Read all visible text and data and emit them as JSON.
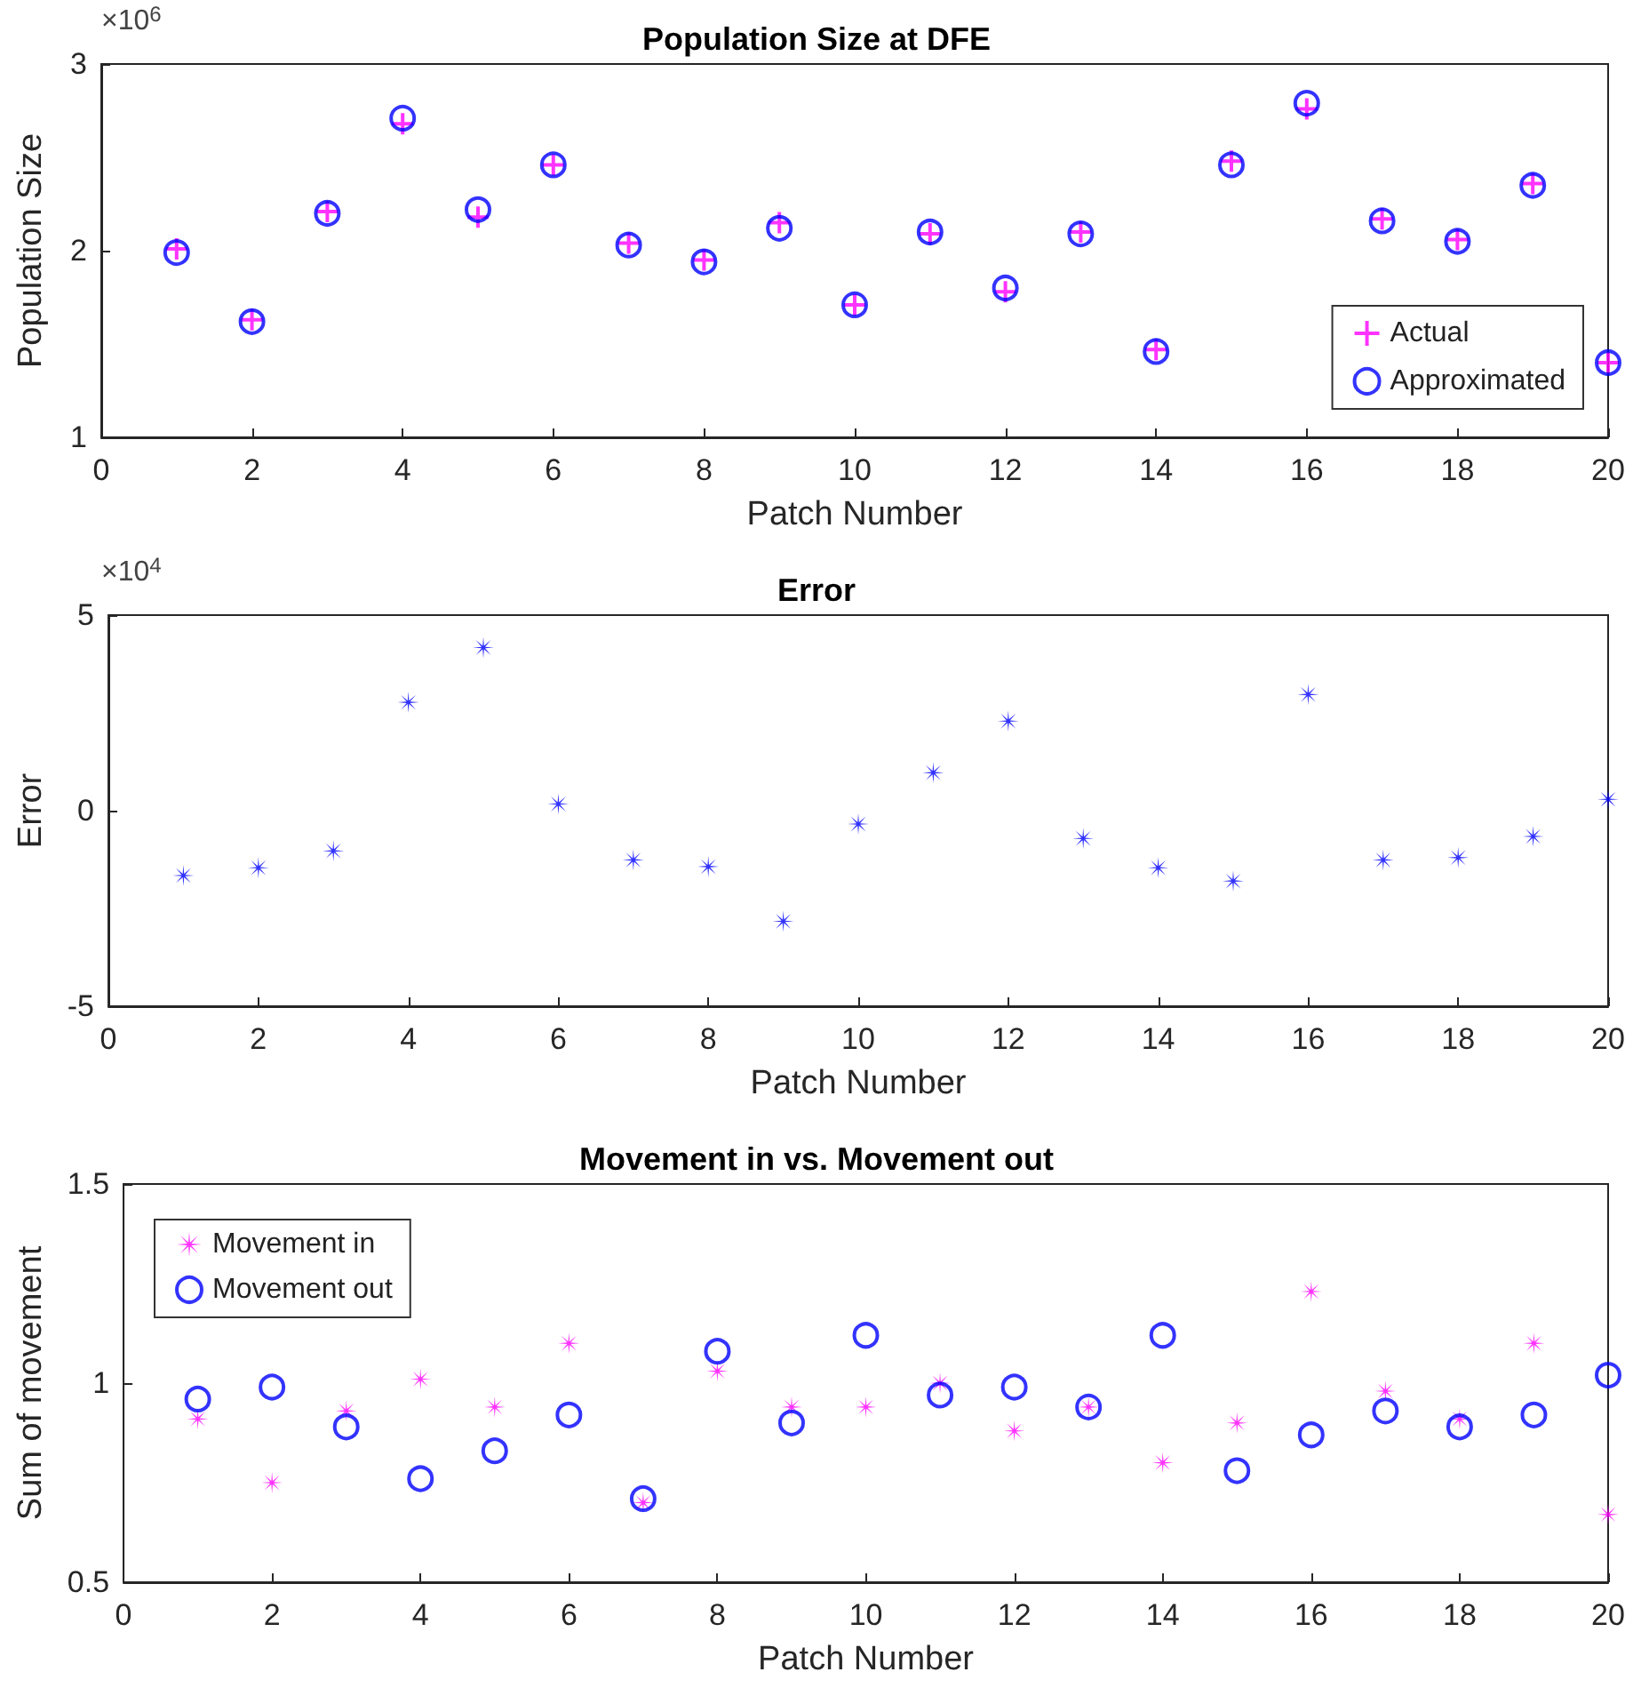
{
  "chart_data": [
    {
      "type": "scatter",
      "title": "Population Size at DFE",
      "xlabel": "Patch Number",
      "ylabel": "Population Size",
      "annotations": [
        "×10$^{6}$"
      ],
      "x": [
        1,
        2,
        3,
        4,
        5,
        6,
        7,
        8,
        9,
        10,
        11,
        12,
        13,
        14,
        15,
        16,
        17,
        18,
        19,
        20
      ],
      "xlim": [
        0,
        20
      ],
      "xticks": [
        0,
        2,
        4,
        6,
        8,
        10,
        12,
        14,
        16,
        18,
        20
      ],
      "ylim": [
        1,
        3
      ],
      "yticks": [
        1,
        2,
        3
      ],
      "grid": false,
      "legend": "bottom right",
      "series": [
        {
          "name": "Actual",
          "color": "#ff00ff",
          "marker": "cross",
          "values": [
            2.01,
            1.63,
            2.21,
            2.68,
            2.18,
            2.46,
            2.04,
            1.95,
            2.15,
            1.71,
            2.09,
            1.78,
            2.1,
            1.47,
            2.48,
            2.76,
            2.17,
            2.06,
            2.36,
            1.4
          ]
        },
        {
          "name": "Approximated",
          "color": "#0000ff",
          "marker": "circle",
          "values": [
            1.99,
            1.62,
            2.2,
            2.71,
            2.22,
            2.46,
            2.03,
            1.94,
            2.12,
            1.71,
            2.1,
            1.8,
            2.09,
            1.46,
            2.46,
            2.79,
            2.16,
            2.05,
            2.35,
            1.4
          ]
        }
      ]
    },
    {
      "type": "scatter",
      "title": "Error",
      "xlabel": "Patch Number",
      "ylabel": "Error",
      "annotations": [
        "×10$^{4}$"
      ],
      "x": [
        1,
        2,
        3,
        4,
        5,
        6,
        7,
        8,
        9,
        10,
        11,
        12,
        13,
        14,
        15,
        16,
        17,
        18,
        19,
        20
      ],
      "xlim": [
        0,
        20
      ],
      "xticks": [
        0,
        2,
        4,
        6,
        8,
        10,
        12,
        14,
        16,
        18,
        20
      ],
      "ylim": [
        -5,
        5
      ],
      "yticks": [
        -5,
        0,
        5
      ],
      "grid": false,
      "legend": false,
      "series": [
        {
          "color": "#0000ff",
          "marker": "star",
          "values": [
            -1.66,
            -1.46,
            -1.03,
            2.77,
            4.17,
            0.17,
            -1.26,
            -1.43,
            -2.83,
            -0.34,
            0.97,
            2.29,
            -0.71,
            -1.46,
            -1.8,
            2.97,
            -1.26,
            -1.2,
            -0.66,
            0.29
          ]
        }
      ]
    },
    {
      "type": "scatter",
      "title": "Movement in vs. Movement out",
      "xlabel": "Patch Number",
      "ylabel": "Sum of movement",
      "x": [
        1,
        2,
        3,
        4,
        5,
        6,
        7,
        8,
        9,
        10,
        11,
        12,
        13,
        14,
        15,
        16,
        17,
        18,
        19,
        20
      ],
      "xlim": [
        0,
        20
      ],
      "xticks": [
        0,
        2,
        4,
        6,
        8,
        10,
        12,
        14,
        16,
        18,
        20
      ],
      "ylim": [
        0.5,
        1.5
      ],
      "yticks": [
        0.5,
        1,
        1.5
      ],
      "grid": false,
      "legend": "top left",
      "series": [
        {
          "name": "Movement in",
          "color": "#ff00ff",
          "marker": "star",
          "values": [
            0.91,
            0.75,
            0.93,
            1.01,
            0.94,
            1.1,
            0.7,
            1.03,
            0.94,
            0.94,
            1.0,
            0.88,
            0.94,
            0.8,
            0.9,
            1.23,
            0.98,
            0.91,
            1.1,
            0.67
          ]
        },
        {
          "name": "Movement out",
          "color": "#0000ff",
          "marker": "circle",
          "values": [
            0.96,
            0.99,
            0.89,
            0.76,
            0.83,
            0.92,
            0.71,
            1.08,
            0.9,
            1.12,
            0.97,
            0.99,
            0.94,
            1.12,
            0.78,
            0.87,
            0.93,
            0.89,
            0.92,
            1.02
          ]
        }
      ]
    }
  ]
}
